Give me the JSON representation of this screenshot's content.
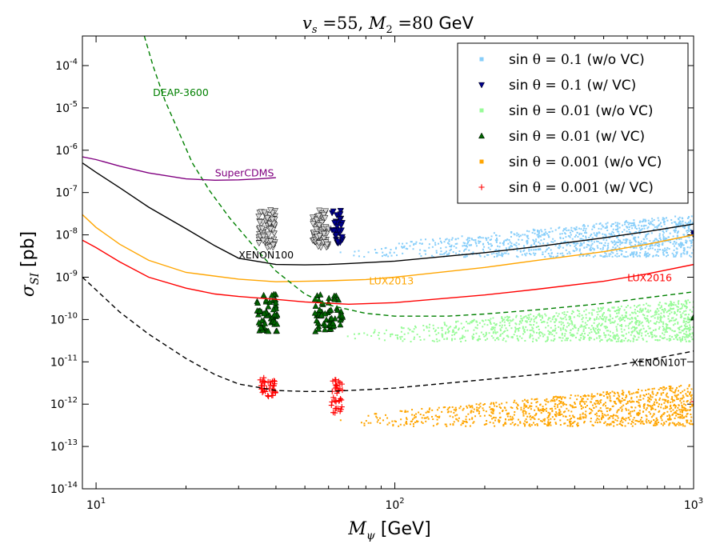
{
  "chart_data": {
    "type": "scatter",
    "title": "v_s =55, M_2 =80 GeV",
    "title_parts": {
      "vs_symbol": "v",
      "vs_sub": "s",
      "vs_value": " =55, ",
      "m_symbol": "M",
      "m_sub": "2",
      "m_value": " =80 ",
      "unit": "GeV"
    },
    "xlabel": "M_ψ [GeV]",
    "ylabel": "σ_SI [pb]",
    "xscale": "log",
    "yscale": "log",
    "xlim": [
      9,
      1000
    ],
    "ylim": [
      1e-14,
      0.0005
    ],
    "x_ticks": [
      {
        "value": 10,
        "base": "10",
        "exp": "1"
      },
      {
        "value": 100,
        "base": "10",
        "exp": "2"
      },
      {
        "value": 1000,
        "base": "10",
        "exp": "3"
      }
    ],
    "y_ticks": [
      {
        "value": 1e-14,
        "base": "10",
        "exp": "-14"
      },
      {
        "value": 1e-13,
        "base": "10",
        "exp": "-13"
      },
      {
        "value": 1e-12,
        "base": "10",
        "exp": "-12"
      },
      {
        "value": 1e-11,
        "base": "10",
        "exp": "-11"
      },
      {
        "value": 1e-10,
        "base": "10",
        "exp": "-10"
      },
      {
        "value": 1e-09,
        "base": "10",
        "exp": "-9"
      },
      {
        "value": 1e-08,
        "base": "10",
        "exp": "-8"
      },
      {
        "value": 1e-07,
        "base": "10",
        "exp": "-7"
      },
      {
        "value": 1e-06,
        "base": "10",
        "exp": "-6"
      },
      {
        "value": 1e-05,
        "base": "10",
        "exp": "-5"
      },
      {
        "value": 0.0001,
        "base": "10",
        "exp": "-4"
      }
    ],
    "legend": {
      "location": "top-right",
      "entries": [
        {
          "prefix": "sin ",
          "math": "θ = 0.1",
          "suffix": " (w/o VC)",
          "marker": "square",
          "color": "#87cefa"
        },
        {
          "prefix": "sin ",
          "math": "θ = 0.1",
          "suffix": " (w/ VC)",
          "marker": "triangle-down",
          "color": "#00008b"
        },
        {
          "prefix": "sin ",
          "math": "θ = 0.01",
          "suffix": " (w/o VC)",
          "marker": "square",
          "color": "#98fb98"
        },
        {
          "prefix": "sin ",
          "math": "θ = 0.01",
          "suffix": " (w/ VC)",
          "marker": "triangle-up",
          "color": "#006400"
        },
        {
          "prefix": "sin ",
          "math": "θ = 0.001",
          "suffix": " (w/o VC)",
          "marker": "square",
          "color": "#ffa500"
        },
        {
          "prefix": "sin ",
          "math": "θ = 0.001",
          "suffix": " (w/ VC)",
          "marker": "plus",
          "color": "#ff0000"
        }
      ]
    },
    "curves": [
      {
        "name": "XENON100",
        "color": "#000000",
        "dash": false,
        "label_pos": [
          30,
          2.8e-09
        ],
        "points": [
          [
            9,
            5e-07
          ],
          [
            10,
            3e-07
          ],
          [
            12,
            1.3e-07
          ],
          [
            15,
            4.5e-08
          ],
          [
            20,
            1.4e-08
          ],
          [
            25,
            5.5e-09
          ],
          [
            30,
            2.8e-09
          ],
          [
            40,
            2e-09
          ],
          [
            50,
            1.95e-09
          ],
          [
            60,
            2e-09
          ],
          [
            70,
            2.1e-09
          ],
          [
            100,
            2.4e-09
          ],
          [
            200,
            3.8e-09
          ],
          [
            300,
            5.3e-09
          ],
          [
            500,
            8.5e-09
          ],
          [
            700,
            1.2e-08
          ],
          [
            1000,
            1.8e-08
          ]
        ]
      },
      {
        "name": "LUX2013",
        "color": "#ffa500",
        "dash": false,
        "label_pos": [
          82,
          6.8e-10
        ],
        "points": [
          [
            9,
            3e-08
          ],
          [
            10,
            1.5e-08
          ],
          [
            12,
            6e-09
          ],
          [
            15,
            2.5e-09
          ],
          [
            20,
            1.3e-09
          ],
          [
            30,
            9e-10
          ],
          [
            40,
            7.8e-10
          ],
          [
            50,
            8e-10
          ],
          [
            60,
            8.2e-10
          ],
          [
            80,
            8.8e-10
          ],
          [
            100,
            1e-09
          ],
          [
            200,
            1.7e-09
          ],
          [
            300,
            2.5e-09
          ],
          [
            500,
            4e-09
          ],
          [
            700,
            6e-09
          ],
          [
            1000,
            1e-08
          ]
        ]
      },
      {
        "name": "LUX2016",
        "color": "#ff0000",
        "dash": false,
        "label_pos": [
          600,
          8e-10
        ],
        "points": [
          [
            9,
            7.5e-09
          ],
          [
            10,
            5e-09
          ],
          [
            12,
            2.3e-09
          ],
          [
            15,
            1e-09
          ],
          [
            20,
            5.5e-10
          ],
          [
            25,
            4e-10
          ],
          [
            30,
            3.5e-10
          ],
          [
            40,
            3e-10
          ],
          [
            50,
            2.6e-10
          ],
          [
            70,
            2.3e-10
          ],
          [
            100,
            2.5e-10
          ],
          [
            200,
            3.8e-10
          ],
          [
            300,
            5.2e-10
          ],
          [
            500,
            8e-10
          ],
          [
            700,
            1.2e-09
          ],
          [
            1000,
            2e-09
          ]
        ]
      },
      {
        "name": "XENON10T",
        "color": "#000000",
        "dash": true,
        "label_pos": [
          620,
          8e-12
        ],
        "points": [
          [
            9,
            1e-09
          ],
          [
            10,
            5e-10
          ],
          [
            12,
            1.5e-10
          ],
          [
            15,
            4.5e-11
          ],
          [
            20,
            1.2e-11
          ],
          [
            25,
            5e-12
          ],
          [
            30,
            3e-12
          ],
          [
            40,
            2.1e-12
          ],
          [
            50,
            2e-12
          ],
          [
            60,
            2e-12
          ],
          [
            80,
            2.2e-12
          ],
          [
            100,
            2.4e-12
          ],
          [
            200,
            3.8e-12
          ],
          [
            300,
            5e-12
          ],
          [
            500,
            7.5e-12
          ],
          [
            700,
            1.1e-11
          ],
          [
            1000,
            1.8e-11
          ]
        ]
      },
      {
        "name": "DEAP-3600",
        "color": "#008000",
        "dash": true,
        "label_pos": [
          15.5,
          1.9e-05
        ],
        "points": [
          [
            14.5,
            0.0005
          ],
          [
            15.5,
            0.0001
          ],
          [
            17,
            1.5e-05
          ],
          [
            19,
            2.5e-06
          ],
          [
            21,
            5e-07
          ],
          [
            24,
            1.1e-07
          ],
          [
            28,
            2.5e-08
          ],
          [
            34,
            5e-09
          ],
          [
            40,
            1.4e-09
          ],
          [
            50,
            4e-10
          ],
          [
            60,
            2.2e-10
          ],
          [
            80,
            1.4e-10
          ],
          [
            100,
            1.2e-10
          ],
          [
            150,
            1.2e-10
          ],
          [
            200,
            1.35e-10
          ],
          [
            300,
            1.7e-10
          ],
          [
            500,
            2.4e-10
          ],
          [
            700,
            3.3e-10
          ],
          [
            1000,
            4.5e-10
          ]
        ]
      },
      {
        "name": "SuperCDMS",
        "color": "#800080",
        "dash": false,
        "label_pos": [
          25,
          2.4e-07
        ],
        "points": [
          [
            9,
            7e-07
          ],
          [
            10,
            6e-07
          ],
          [
            12,
            4.2e-07
          ],
          [
            15,
            2.9e-07
          ],
          [
            20,
            2.1e-07
          ],
          [
            25,
            1.95e-07
          ],
          [
            30,
            2e-07
          ],
          [
            35,
            2.1e-07
          ],
          [
            40,
            2.25e-07
          ]
        ]
      }
    ],
    "curve_labels": [
      "XENON100",
      "LUX2013",
      "LUX2016",
      "XENON10T",
      "DEAP-3600",
      "SuperCDMS"
    ],
    "scatter_regions": [
      {
        "name": "sin θ = 0.1 (w/o VC)",
        "color": "#87cefa",
        "x_range": [
          62,
          1000
        ],
        "y_low": [
          3e-09,
          3e-09
        ],
        "y_high": [
          5e-09,
          3e-08
        ],
        "count": 1100
      },
      {
        "name": "sin θ = 0.01 (w/o VC)",
        "color": "#98fb98",
        "x_range": [
          62,
          1000
        ],
        "y_low": [
          3e-11,
          3e-11
        ],
        "y_high": [
          5e-11,
          3e-10
        ],
        "count": 1100
      },
      {
        "name": "sin θ = 0.001 (w/o VC)",
        "color": "#ffa500",
        "x_range": [
          62,
          1000
        ],
        "y_low": [
          3e-13,
          3e-13
        ],
        "y_high": [
          5e-13,
          3e-12
        ],
        "count": 1100
      },
      {
        "name": "excluded points (gray)",
        "color": "#a0a0a0",
        "marker": "triangle-down",
        "clusters": [
          [
            35,
            40,
            5e-09,
            4e-08
          ],
          [
            53,
            60,
            5e-09,
            4e-08
          ]
        ],
        "count": 160
      },
      {
        "name": "sin θ = 0.1 (w/ VC)",
        "color": "#00008b",
        "marker": "triangle-down",
        "clusters": [
          [
            61,
            67,
            6e-09,
            4e-08
          ],
          [
            1000,
            1000,
            1e-08,
            1.2e-08
          ]
        ],
        "count": 70
      },
      {
        "name": "sin θ = 0.01 (w/ VC)",
        "color": "#006400",
        "marker": "triangle-up",
        "clusters": [
          [
            34.5,
            40.5,
            5e-11,
            4e-10
          ],
          [
            54,
            67,
            5e-11,
            4e-10
          ],
          [
            1000,
            1000,
            1e-10,
            1.2e-10
          ]
        ],
        "count": 170
      },
      {
        "name": "sin θ = 0.001 (w/ VC)",
        "color": "#ff0000",
        "marker": "plus",
        "clusters": [
          [
            35,
            40,
            1.5e-12,
            4.2e-12
          ],
          [
            61,
            67,
            6e-13,
            4.2e-12
          ],
          [
            1000,
            1000,
            1.1e-12,
            1.2e-12
          ]
        ],
        "count": 110
      }
    ]
  }
}
